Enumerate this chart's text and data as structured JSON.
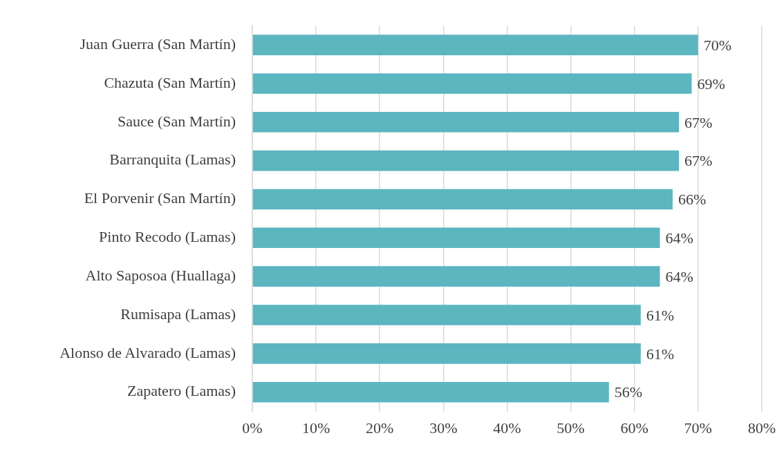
{
  "chart_data": {
    "type": "bar",
    "orientation": "horizontal",
    "categories": [
      "Juan Guerra (San Martín)",
      "Chazuta (San Martín)",
      "Sauce (San Martín)",
      "Barranquita (Lamas)",
      "El Porvenir (San Martín)",
      "Pinto Recodo (Lamas)",
      "Alto Saposoa (Huallaga)",
      "Rumisapa (Lamas)",
      "Alonso de Alvarado (Lamas)",
      "Zapatero (Lamas)"
    ],
    "values": [
      70,
      69,
      67,
      67,
      66,
      64,
      64,
      61,
      61,
      56
    ],
    "value_labels": [
      "70%",
      "69%",
      "67%",
      "67%",
      "66%",
      "64%",
      "64%",
      "61%",
      "61%",
      "56%"
    ],
    "color": "#5bb6c0",
    "xlim": [
      0,
      80
    ],
    "xticks": [
      {
        "value": 0,
        "label": "0%"
      },
      {
        "value": 10,
        "label": "10%"
      },
      {
        "value": 20,
        "label": "20%"
      },
      {
        "value": 30,
        "label": "30%"
      },
      {
        "value": 40,
        "label": "40%"
      },
      {
        "value": 50,
        "label": "50%"
      },
      {
        "value": 60,
        "label": "60%"
      },
      {
        "value": 70,
        "label": "70%"
      },
      {
        "value": 80,
        "label": "80%"
      }
    ],
    "grid": "x",
    "legend": false
  }
}
